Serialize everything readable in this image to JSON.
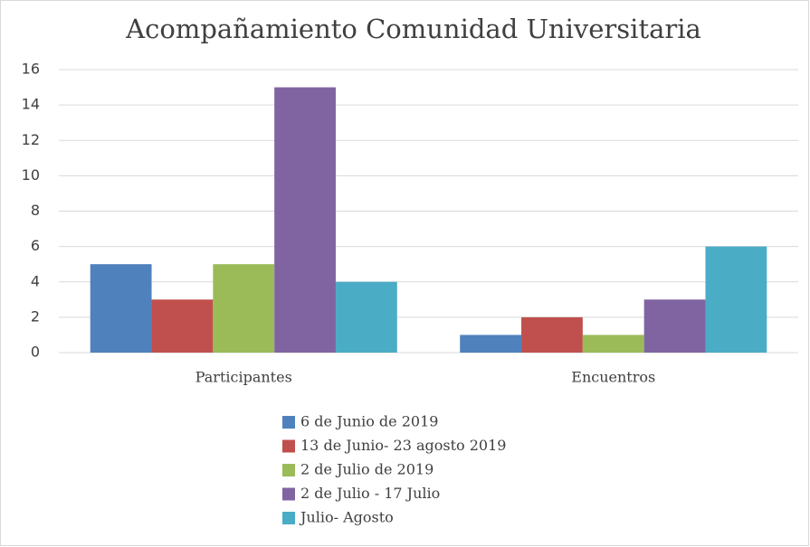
{
  "chart_data": {
    "type": "bar",
    "title": "Acompañamiento Comunidad Universitaria",
    "categories": [
      "Participantes",
      "Encuentros"
    ],
    "series": [
      {
        "name": "6 de Junio de 2019",
        "color": "#4f81bd",
        "values": [
          5,
          1
        ]
      },
      {
        "name": "13 de Junio- 23 agosto 2019",
        "color": "#c0504d",
        "values": [
          3,
          2
        ]
      },
      {
        "name": "2 de Julio de 2019",
        "color": "#9bbb59",
        "values": [
          5,
          1
        ]
      },
      {
        "name": "2 de Julio - 17 Julio",
        "color": "#8064a2",
        "values": [
          15,
          3
        ]
      },
      {
        "name": "Julio- Agosto",
        "color": "#4bacc6",
        "values": [
          4,
          6
        ]
      }
    ],
    "ylim": [
      0,
      16
    ],
    "yticks": [
      0,
      2,
      4,
      6,
      8,
      10,
      12,
      14,
      16
    ],
    "grid": true,
    "legend": "bottom"
  }
}
